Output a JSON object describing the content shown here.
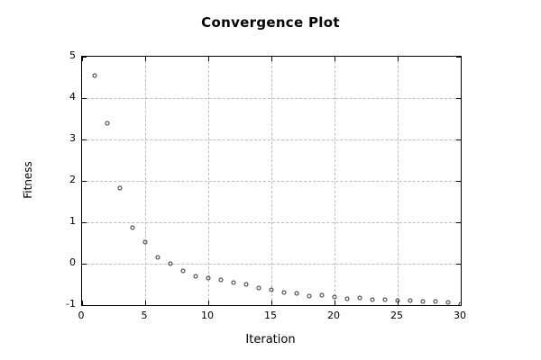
{
  "title": "Convergence Plot",
  "chart_data": {
    "type": "scatter",
    "title": "Convergence Plot",
    "xlabel": "Iteration",
    "ylabel": "Fitness",
    "xlim": [
      0,
      30
    ],
    "ylim": [
      -1,
      5
    ],
    "x_ticks": [
      0,
      5,
      10,
      15,
      20,
      25,
      30
    ],
    "y_ticks": [
      -1,
      0,
      1,
      2,
      3,
      4,
      5
    ],
    "grid": true,
    "legend": "none",
    "marker": "open-circle",
    "marker_color": "#333333",
    "grid_color": "#bcbcbc",
    "axis_color": "#000000",
    "background_color": "#ffffff",
    "x": [
      1,
      2,
      3,
      4,
      5,
      6,
      7,
      8,
      9,
      10,
      11,
      12,
      13,
      14,
      15,
      16,
      17,
      18,
      19,
      20,
      21,
      22,
      23,
      24,
      25,
      26,
      27,
      28,
      29,
      30
    ],
    "y": [
      4.55,
      3.4,
      1.82,
      0.87,
      0.53,
      0.15,
      0.01,
      -0.17,
      -0.3,
      -0.34,
      -0.4,
      -0.45,
      -0.51,
      -0.58,
      -0.64,
      -0.69,
      -0.72,
      -0.78,
      -0.76,
      -0.81,
      -0.84,
      -0.83,
      -0.86,
      -0.87,
      -0.89,
      -0.9,
      -0.91,
      -0.92,
      -0.93,
      -0.98
    ]
  }
}
